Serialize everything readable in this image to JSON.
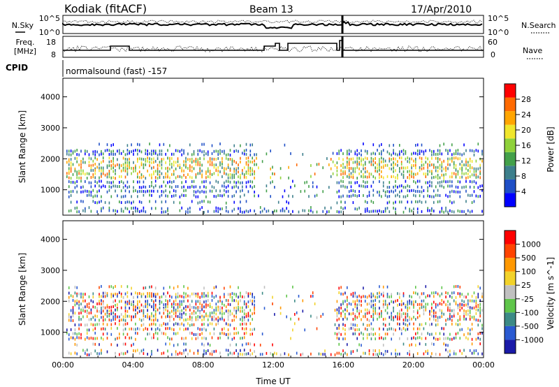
{
  "header": {
    "station": "Kodiak (fitACF)",
    "beam": "Beam 13",
    "date": "17/Apr/2010"
  },
  "top_panels": {
    "nsky_label": "N.Sky",
    "nsky_ticks": [
      "10^5",
      "10^0"
    ],
    "nsearch_label": "N.Search",
    "nsearch_ticks": [
      "10^5",
      "10^0"
    ],
    "freq_label_1": "Freq.",
    "freq_label_2": "[MHz]",
    "freq_ticks": [
      "18",
      "8"
    ],
    "nave_label": "Nave",
    "nave_ticks": [
      "60",
      "0"
    ],
    "cpid_label": "CPID",
    "cpid_text": "normalsound (fast) -157"
  },
  "colors": {
    "power_scale": [
      "#0000ff",
      "#1f4fc6",
      "#3d7f8c",
      "#43a04a",
      "#8fd13a",
      "#f0e62c",
      "#ffa500",
      "#ff6a00",
      "#ff0000"
    ],
    "velocity_scale": [
      "#1a1aa8",
      "#2a5ad1",
      "#3c8a86",
      "#5fc54a",
      "#c0c0c0",
      "#f2d22a",
      "#ff9800",
      "#ff4400",
      "#ff0000"
    ]
  },
  "chart_data": [
    {
      "type": "heatmap",
      "name": "power",
      "xlabel": "",
      "ylabel": "Slant Range [km]",
      "x_ticks": [
        "00:00",
        "04:00",
        "08:00",
        "12:00",
        "16:00",
        "20:00",
        "00:00"
      ],
      "xlim": [
        0,
        24
      ],
      "ylim": [
        180,
        4600
      ],
      "y_ticks": [
        1000,
        2000,
        3000,
        4000
      ],
      "colorbar_label": "Power [dB]",
      "colorbar_ticks": [
        "28",
        "24",
        "20",
        "16",
        "12",
        "8",
        "4"
      ],
      "colorbar_range": [
        0,
        32
      ]
    },
    {
      "type": "heatmap",
      "name": "velocity",
      "xlabel": "Time UT",
      "ylabel": "Slant Range [km]",
      "x_ticks": [
        "00:00",
        "04:00",
        "08:00",
        "12:00",
        "16:00",
        "20:00",
        "00:00"
      ],
      "xlim": [
        0,
        24
      ],
      "ylim": [
        180,
        4600
      ],
      "y_ticks": [
        1000,
        2000,
        3000,
        4000
      ],
      "colorbar_label": "Velocity [m s^-1]",
      "colorbar_ticks": [
        "1000",
        "500",
        "100",
        "25",
        "-25",
        "-100",
        "-500",
        "-1000"
      ]
    }
  ]
}
